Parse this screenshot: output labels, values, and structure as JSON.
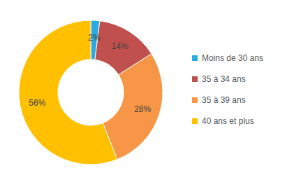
{
  "chart_data": {
    "type": "pie",
    "categories": [
      "Moins de 30 ans",
      "35 à 34 ans",
      "35 à 39 ans",
      "40 ans et plus"
    ],
    "values": [
      2,
      14,
      28,
      56
    ],
    "value_labels": [
      "2%",
      "14%",
      "28%",
      "56%"
    ],
    "colors": [
      "#29abe2",
      "#c0504d",
      "#f79646",
      "#ffc000"
    ],
    "data_labels": true,
    "legend": "right"
  }
}
